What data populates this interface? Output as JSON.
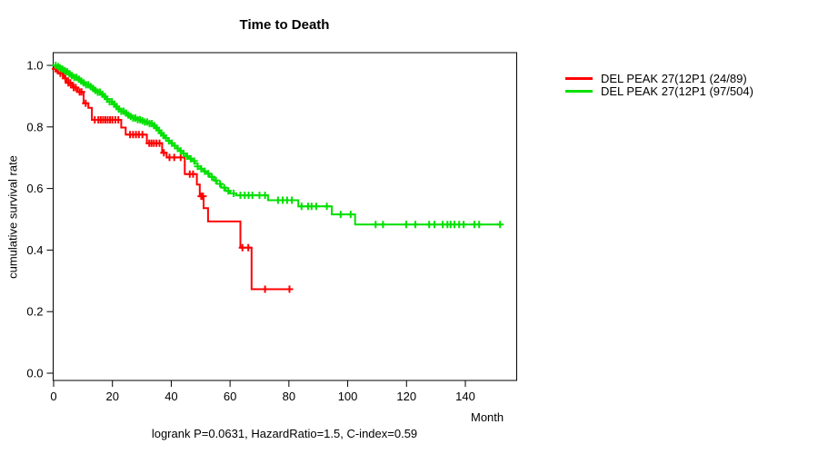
{
  "chart_data": {
    "type": "line",
    "subtype": "kaplan-meier-step",
    "title": "Time to Death",
    "xlabel": "Month",
    "ylabel": "cumulative survival rate",
    "footnote": "logrank P=0.0631, HazardRatio=1.5, C-index=0.59",
    "xlim": [
      0,
      157
    ],
    "ylim": [
      0.0,
      1.04
    ],
    "x_tick_values": [
      0,
      20,
      40,
      60,
      80,
      100,
      120,
      140
    ],
    "x_tick_labels": [
      "0",
      "20",
      "40",
      "60",
      "80",
      "100",
      "120",
      "140"
    ],
    "y_tick_values": [
      0.0,
      0.2,
      0.4,
      0.6,
      0.8,
      1.0
    ],
    "y_tick_labels": [
      "0.0",
      "0.2",
      "0.4",
      "0.6",
      "0.8",
      "1.0"
    ],
    "grid": false,
    "legend_position": "right-outside",
    "axis_color": "#000000",
    "series": [
      {
        "name": "DEL PEAK 27(12P1 (24/89)",
        "color": "#ff0000",
        "events_over_n": "24/89",
        "end_month": 80.2,
        "steps": [
          [
            0,
            1.0
          ],
          [
            0.4,
            0.989
          ],
          [
            1.5,
            0.974
          ],
          [
            3.4,
            0.958
          ],
          [
            4.4,
            0.943
          ],
          [
            6.3,
            0.928
          ],
          [
            8.1,
            0.914
          ],
          [
            10.2,
            0.877
          ],
          [
            11.8,
            0.862
          ],
          [
            13.0,
            0.823
          ],
          [
            23.0,
            0.798
          ],
          [
            24.5,
            0.775
          ],
          [
            31.7,
            0.747
          ],
          [
            36.9,
            0.716
          ],
          [
            38.4,
            0.701
          ],
          [
            44.6,
            0.647
          ],
          [
            48.7,
            0.613
          ],
          [
            49.7,
            0.575
          ],
          [
            51.0,
            0.536
          ],
          [
            52.5,
            0.493
          ],
          [
            63.5,
            0.408
          ],
          [
            67.3,
            0.273
          ]
        ],
        "censor_months": [
          0.6,
          1.2,
          2.3,
          3.1,
          4.0,
          5.0,
          5.7,
          6.8,
          7.5,
          8.8,
          9.5,
          10.9,
          14.0,
          15.2,
          16.0,
          16.8,
          17.6,
          18.4,
          19.2,
          20.0,
          21.0,
          22.0,
          26.0,
          27.0,
          28.0,
          29.0,
          30.2,
          32.5,
          33.3,
          34.1,
          35.0,
          36.0,
          37.5,
          39.4,
          41.0,
          43.2,
          46.3,
          47.4,
          50.2,
          50.8,
          64.2,
          66.2,
          71.9,
          80.2
        ]
      },
      {
        "name": "DEL PEAK 27(12P1 (97/504)",
        "color": "#00e000",
        "events_over_n": "97/504",
        "end_month": 151.8,
        "steps": [
          [
            0,
            1.0
          ],
          [
            0.8,
            0.996
          ],
          [
            1.6,
            0.992
          ],
          [
            2.4,
            0.988
          ],
          [
            3.2,
            0.983
          ],
          [
            4.0,
            0.979
          ],
          [
            5.0,
            0.973
          ],
          [
            6.0,
            0.967
          ],
          [
            7.0,
            0.961
          ],
          [
            8.0,
            0.955
          ],
          [
            9.0,
            0.949
          ],
          [
            10.0,
            0.943
          ],
          [
            11.0,
            0.937
          ],
          [
            12.0,
            0.931
          ],
          [
            13.0,
            0.925
          ],
          [
            14.0,
            0.919
          ],
          [
            15.0,
            0.913
          ],
          [
            16.0,
            0.906
          ],
          [
            17.0,
            0.899
          ],
          [
            18.0,
            0.89
          ],
          [
            19.0,
            0.882
          ],
          [
            20.0,
            0.874
          ],
          [
            21.0,
            0.866
          ],
          [
            22.0,
            0.858
          ],
          [
            23.0,
            0.851
          ],
          [
            24.0,
            0.845
          ],
          [
            25.0,
            0.839
          ],
          [
            26.0,
            0.834
          ],
          [
            27.0,
            0.829
          ],
          [
            28.0,
            0.824
          ],
          [
            29.5,
            0.82
          ],
          [
            31.0,
            0.816
          ],
          [
            32.5,
            0.811
          ],
          [
            33.5,
            0.804
          ],
          [
            34.3,
            0.797
          ],
          [
            35.2,
            0.789
          ],
          [
            36.1,
            0.78
          ],
          [
            37.0,
            0.772
          ],
          [
            38.0,
            0.764
          ],
          [
            39.0,
            0.755
          ],
          [
            40.0,
            0.747
          ],
          [
            41.0,
            0.739
          ],
          [
            42.0,
            0.73
          ],
          [
            43.0,
            0.722
          ],
          [
            44.0,
            0.714
          ],
          [
            45.0,
            0.705
          ],
          [
            46.0,
            0.697
          ],
          [
            47.0,
            0.689
          ],
          [
            48.0,
            0.681
          ],
          [
            49.0,
            0.672
          ],
          [
            50.0,
            0.664
          ],
          [
            51.0,
            0.656
          ],
          [
            52.0,
            0.648
          ],
          [
            53.0,
            0.638
          ],
          [
            54.5,
            0.626
          ],
          [
            55.5,
            0.615
          ],
          [
            57.0,
            0.603
          ],
          [
            58.5,
            0.592
          ],
          [
            60.0,
            0.584
          ],
          [
            62.0,
            0.578
          ],
          [
            72.9,
            0.562
          ],
          [
            83.2,
            0.542
          ],
          [
            94.6,
            0.516
          ],
          [
            102.5,
            0.483
          ]
        ],
        "censor_months": [
          0.7,
          1.5,
          2.2,
          3.0,
          3.8,
          4.6,
          5.4,
          6.2,
          7.0,
          7.8,
          8.6,
          9.4,
          10.2,
          11.0,
          11.8,
          12.6,
          13.4,
          14.2,
          15.0,
          15.8,
          16.6,
          17.4,
          18.2,
          19.0,
          19.8,
          20.6,
          21.4,
          22.2,
          23.0,
          23.8,
          24.6,
          25.4,
          26.2,
          27.0,
          27.8,
          28.6,
          29.4,
          30.2,
          31.0,
          31.8,
          32.6,
          33.4,
          34.2,
          35.0,
          35.8,
          36.6,
          37.4,
          38.2,
          39.2,
          40.2,
          41.2,
          42.2,
          43.2,
          44.2,
          45.4,
          46.6,
          47.8,
          49.0,
          50.2,
          51.4,
          52.6,
          53.8,
          55.2,
          56.6,
          58.0,
          59.4,
          61.2,
          63.5,
          65.0,
          66.3,
          67.6,
          70.0,
          71.9,
          76.3,
          77.9,
          79.4,
          81.0,
          84.3,
          86.5,
          87.7,
          89.3,
          92.9,
          97.6,
          101.0,
          109.5,
          112.0,
          119.9,
          123.0,
          127.7,
          129.5,
          132.3,
          133.9,
          135.0,
          136.3,
          137.9,
          139.4,
          143.1,
          144.7,
          151.8
        ]
      }
    ]
  }
}
